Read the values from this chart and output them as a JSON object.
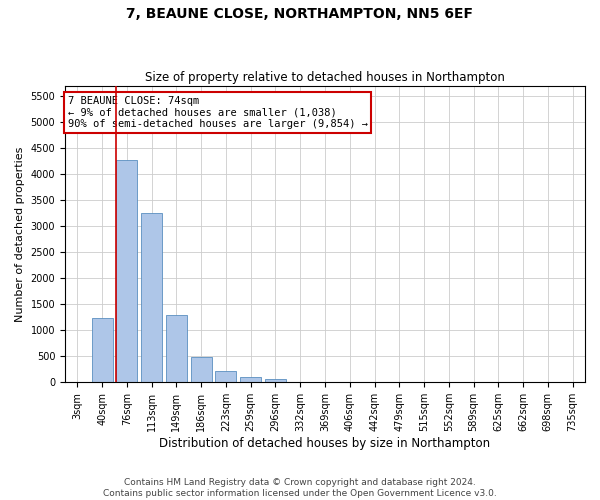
{
  "title": "7, BEAUNE CLOSE, NORTHAMPTON, NN5 6EF",
  "subtitle": "Size of property relative to detached houses in Northampton",
  "xlabel": "Distribution of detached houses by size in Northampton",
  "ylabel": "Number of detached properties",
  "categories": [
    "3sqm",
    "40sqm",
    "76sqm",
    "113sqm",
    "149sqm",
    "186sqm",
    "223sqm",
    "259sqm",
    "296sqm",
    "332sqm",
    "369sqm",
    "406sqm",
    "442sqm",
    "479sqm",
    "515sqm",
    "552sqm",
    "589sqm",
    "625sqm",
    "662sqm",
    "698sqm",
    "735sqm"
  ],
  "values": [
    0,
    1230,
    4280,
    3250,
    1290,
    490,
    210,
    100,
    70,
    0,
    0,
    0,
    0,
    0,
    0,
    0,
    0,
    0,
    0,
    0,
    0
  ],
  "bar_color": "#aec6e8",
  "bar_edge_color": "#5a8fc0",
  "vline_color": "#cc0000",
  "vline_x_index": 2,
  "annotation_text": "7 BEAUNE CLOSE: 74sqm\n← 9% of detached houses are smaller (1,038)\n90% of semi-detached houses are larger (9,854) →",
  "annotation_box_color": "white",
  "annotation_box_edge_color": "#cc0000",
  "ylim": [
    0,
    5700
  ],
  "yticks": [
    0,
    500,
    1000,
    1500,
    2000,
    2500,
    3000,
    3500,
    4000,
    4500,
    5000,
    5500
  ],
  "footer_line1": "Contains HM Land Registry data © Crown copyright and database right 2024.",
  "footer_line2": "Contains public sector information licensed under the Open Government Licence v3.0.",
  "bg_color": "#ffffff",
  "grid_color": "#cccccc",
  "title_fontsize": 10,
  "subtitle_fontsize": 8.5,
  "ylabel_fontsize": 8,
  "xlabel_fontsize": 8.5,
  "tick_fontsize": 7,
  "annotation_fontsize": 7.5,
  "footer_fontsize": 6.5
}
